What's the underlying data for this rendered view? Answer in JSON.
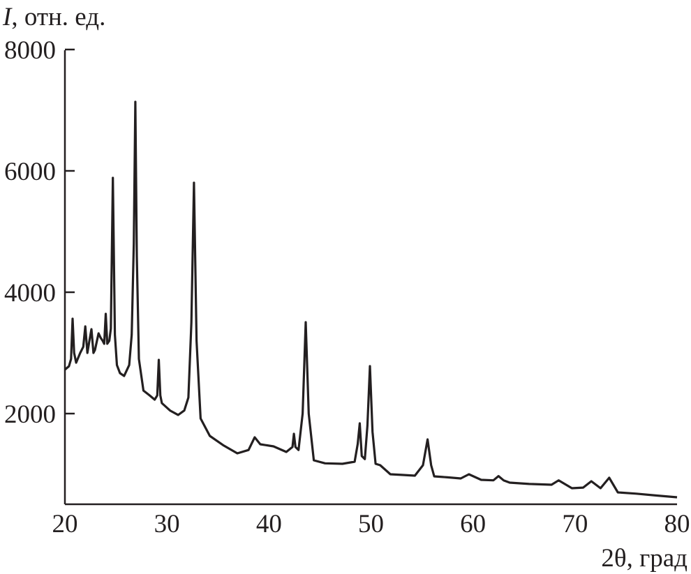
{
  "chart_data": {
    "type": "line",
    "ylabel_symbol": "I",
    "ylabel_rest": ", отн. ед.",
    "xlabel": "2θ, град",
    "xlim": [
      20,
      80
    ],
    "ylim": [
      500,
      8000
    ],
    "xticks": [
      20,
      30,
      40,
      50,
      60,
      70,
      80
    ],
    "yticks": [
      2000,
      4000,
      6000,
      8000
    ],
    "grid": false,
    "line_color": "#231f20",
    "series": [
      {
        "x": [
          20.0,
          20.4,
          20.6,
          20.75,
          20.9,
          21.1,
          21.5,
          21.8,
          22.0,
          22.2,
          22.4,
          22.6,
          22.8,
          22.95,
          23.3,
          23.5,
          23.7,
          23.85,
          24.0,
          24.15,
          24.35,
          24.5,
          24.7,
          24.9,
          25.1,
          25.4,
          25.8,
          26.3,
          26.55,
          26.75,
          26.9,
          27.05,
          27.25,
          27.7,
          28.3,
          28.8,
          29.05,
          29.2,
          29.35,
          29.5,
          30.3,
          31.1,
          31.7,
          32.1,
          32.4,
          32.65,
          32.9,
          33.3,
          34.2,
          35.5,
          36.9,
          38.0,
          38.6,
          39.15,
          40.45,
          41.7,
          42.3,
          42.45,
          42.6,
          42.9,
          43.3,
          43.6,
          43.9,
          44.4,
          45.5,
          47.2,
          48.4,
          48.7,
          48.9,
          49.1,
          49.4,
          49.65,
          49.9,
          50.15,
          50.45,
          50.9,
          51.9,
          53.0,
          54.3,
          55.1,
          55.55,
          55.9,
          56.2,
          57.5,
          58.8,
          59.6,
          60.8,
          62.0,
          62.5,
          63.0,
          63.6,
          65.5,
          67.7,
          68.4,
          69.7,
          70.8,
          71.6,
          72.5,
          73.35,
          74.2,
          76.0,
          78.0,
          80.0
        ],
        "y": [
          2724,
          2780,
          2900,
          3563,
          3000,
          2839,
          3000,
          3100,
          3437,
          3000,
          3200,
          3391,
          3000,
          3050,
          3322,
          3250,
          3200,
          3150,
          3644,
          3150,
          3200,
          3400,
          5885,
          3300,
          2800,
          2667,
          2620,
          2800,
          3300,
          4800,
          7138,
          4600,
          2900,
          2379,
          2300,
          2230,
          2300,
          2885,
          2300,
          2172,
          2050,
          1977,
          2050,
          2264,
          3500,
          5805,
          3200,
          1920,
          1632,
          1480,
          1345,
          1400,
          1609,
          1494,
          1460,
          1368,
          1450,
          1667,
          1450,
          1400,
          2000,
          3506,
          2000,
          1230,
          1180,
          1172,
          1207,
          1500,
          1839,
          1300,
          1250,
          1800,
          2782,
          1700,
          1172,
          1150,
          1000,
          990,
          977,
          1150,
          1575,
          1150,
          966,
          950,
          931,
          1000,
          908,
          900,
          970,
          900,
          862,
          840,
          828,
          900,
          770,
          780,
          885,
          770,
          943,
          701,
          680,
          650,
          621
        ]
      }
    ]
  }
}
